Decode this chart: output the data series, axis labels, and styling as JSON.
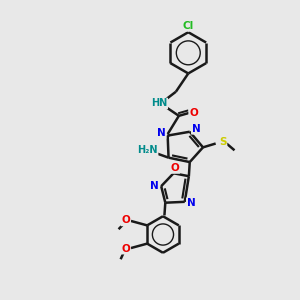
{
  "background_color": "#e8e8e8",
  "bond_color": "#1a1a1a",
  "bond_width": 1.8,
  "colors": {
    "Cl": "#22bb22",
    "N": "#0000ee",
    "O": "#ee0000",
    "S": "#cccc00",
    "NH": "#008b8b",
    "H2N": "#008b8b",
    "C": "#1a1a1a"
  }
}
